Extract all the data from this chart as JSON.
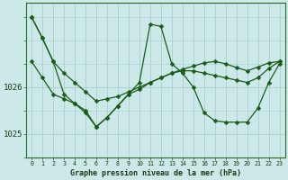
{
  "bg_color": "#cce8e8",
  "grid_color": "#aacfcf",
  "line_color": "#1a5c1a",
  "ytick_labels": [
    "1025",
    "1026"
  ],
  "ytick_vals": [
    1025.0,
    1026.0
  ],
  "ylim": [
    1024.5,
    1027.8
  ],
  "xlim": [
    -0.5,
    23.5
  ],
  "xlabel": "Graphe pression niveau de la mer (hPa)",
  "series_A": [
    1027.5,
    1027.05,
    1026.55,
    1026.3,
    1026.1,
    1025.9,
    1025.7,
    1025.75,
    1025.8,
    1025.9,
    1026.0,
    1026.1,
    1026.2,
    1026.3,
    1026.35,
    1026.35,
    1026.3,
    1026.25,
    1026.2,
    1026.15,
    1026.1,
    1026.2,
    1026.4,
    1026.55
  ],
  "series_B": [
    1027.5,
    1027.05,
    1026.55,
    1025.85,
    1025.65,
    1025.45,
    1025.15,
    1025.35,
    1025.6,
    1025.85,
    1026.1,
    1027.35,
    1027.3,
    1026.5,
    1026.3,
    1026.0,
    1025.45,
    1025.28,
    1025.25,
    1025.25,
    1025.25,
    1025.55,
    1026.1,
    1026.5
  ],
  "series_C": [
    1026.55,
    1026.2,
    1025.85,
    1025.75,
    1025.65,
    1025.5,
    1025.15,
    1025.35,
    1025.6,
    1025.85,
    1025.95,
    1026.1,
    1026.2,
    1026.3,
    1026.38,
    1026.45,
    1026.52,
    1026.55,
    1026.5,
    1026.42,
    1026.35,
    1026.43,
    1026.52,
    1026.55
  ]
}
